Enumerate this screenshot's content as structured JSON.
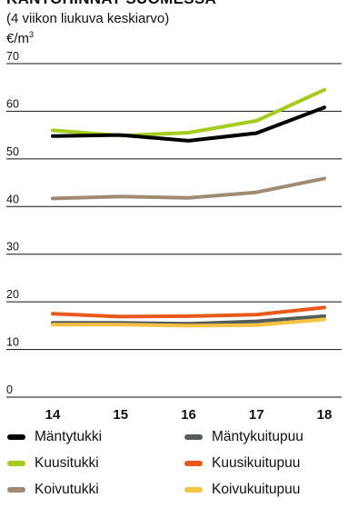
{
  "chart_data": {
    "type": "line",
    "title": "KANTOHINNAT SUOMESSA",
    "subtitle": "(4 viikon liukuva keskiarvo)",
    "unit_label": "€/m",
    "unit_sup": "3",
    "categories": [
      "14",
      "15",
      "16",
      "17",
      "18"
    ],
    "ylim": [
      0,
      70
    ],
    "yticks": [
      "0",
      "10",
      "20",
      "30",
      "40",
      "50",
      "60",
      "70"
    ],
    "grid": true,
    "legend_position": "bottom",
    "series": [
      {
        "name": "Mäntytukki",
        "color": "#000000",
        "values": [
          54.8,
          55.0,
          53.8,
          55.4,
          60.8
        ]
      },
      {
        "name": "Kuusitukki",
        "color": "#a3cc1c",
        "values": [
          56.0,
          54.9,
          55.5,
          58.0,
          64.5
        ]
      },
      {
        "name": "Koivutukki",
        "color": "#a18a72",
        "values": [
          41.7,
          42.1,
          41.8,
          43.0,
          45.9
        ]
      },
      {
        "name": "Mäntykuitupuu",
        "color": "#555c5a",
        "values": [
          15.6,
          15.6,
          15.4,
          15.9,
          17.0
        ]
      },
      {
        "name": "Kuusikuitupuu",
        "color": "#e8591a",
        "values": [
          17.5,
          16.9,
          17.0,
          17.3,
          18.8
        ]
      },
      {
        "name": "Koivukuitupuu",
        "color": "#f5c242",
        "values": [
          15.2,
          15.2,
          15.0,
          15.1,
          16.3
        ]
      }
    ]
  }
}
